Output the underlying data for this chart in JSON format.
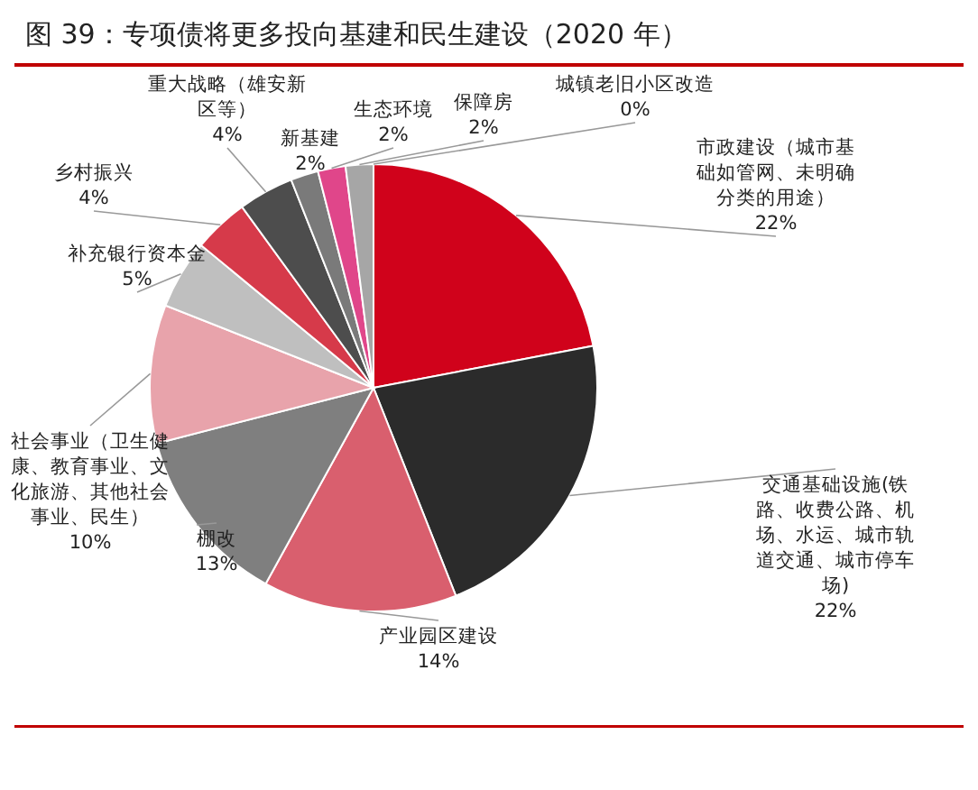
{
  "chart_data": {
    "type": "pie",
    "title": "图 39：专项债将更多投向基建和民生建设（2020 年）",
    "categories": [
      "市政建设（城市基础如管网、未明确分类的用途）",
      "交通基础设施(铁路、收费公路、机场、水运、城市轨道交通、城市停车场)",
      "产业园区建设",
      "棚改",
      "社会事业（卫生健康、教育事业、文化旅游、其他社会事业、民生）",
      "补充银行资本金",
      "乡村振兴",
      "重大战略（雄安新区等）",
      "新基建",
      "生态环境",
      "保障房",
      "城镇老旧小区改造"
    ],
    "values": [
      22,
      22,
      14,
      13,
      10,
      5,
      4,
      4,
      2,
      2,
      2,
      0
    ],
    "colors": [
      "#d0021b",
      "#2b2b2b",
      "#d95f6e",
      "#7f7f7f",
      "#e8a3ab",
      "#bfbfbf",
      "#d63a4a",
      "#4d4d4d",
      "#7a7a7a",
      "#e0468a",
      "#a6a6a6",
      "#bcd0e6"
    ],
    "value_labels": [
      "22%",
      "22%",
      "14%",
      "13%",
      "10%",
      "5%",
      "4%",
      "4%",
      "2%",
      "2%",
      "2%",
      "0%"
    ]
  }
}
